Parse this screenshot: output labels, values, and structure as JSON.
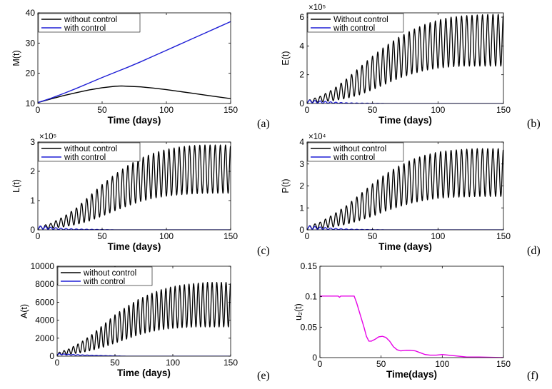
{
  "chart_data": [
    {
      "type": "line",
      "panel_label": "(a)",
      "xlabel": "Time (days)",
      "ylabel": "M(t)",
      "xlim": [
        0,
        150
      ],
      "ylim": [
        10,
        40
      ],
      "xticks": [
        "0",
        "50",
        "100",
        "150"
      ],
      "yticks": [
        "10",
        "20",
        "30",
        "40"
      ],
      "multiplier": "",
      "legend_position": "top-left",
      "series": [
        {
          "name": "without control",
          "color": "#000000",
          "x": [
            0,
            10,
            20,
            30,
            40,
            50,
            60,
            65,
            70,
            80,
            90,
            100,
            110,
            120,
            130,
            140,
            150
          ],
          "y": [
            10.3,
            11.5,
            12.6,
            13.6,
            14.5,
            15.2,
            15.7,
            15.8,
            15.7,
            15.5,
            15.1,
            14.6,
            14.0,
            13.4,
            12.8,
            12.2,
            11.6
          ]
        },
        {
          "name": "with control",
          "color": "#1f1fd6",
          "x": [
            0,
            10,
            20,
            30,
            40,
            50,
            60,
            70,
            80,
            90,
            100,
            110,
            120,
            130,
            140,
            150
          ],
          "y": [
            10.3,
            11.7,
            13.3,
            15.0,
            16.8,
            18.6,
            20.3,
            22.0,
            23.8,
            25.7,
            27.6,
            29.5,
            31.4,
            33.3,
            35.2,
            37.1
          ]
        }
      ]
    },
    {
      "type": "line",
      "panel_label": "(b)",
      "xlabel": "Time (days)",
      "ylabel": "E(t)",
      "xlim": [
        0,
        150
      ],
      "ylim": [
        0,
        6.3
      ],
      "xticks": [
        "0",
        "50",
        "100",
        "150"
      ],
      "yticks": [
        "0",
        "2",
        "4",
        "6"
      ],
      "multiplier": "×10⁵",
      "legend_position": "top",
      "oscillation_period_days": 4,
      "series": [
        {
          "name": "Without control",
          "color": "#000000",
          "x": [
            0,
            10,
            20,
            30,
            40,
            50,
            60,
            70,
            80,
            90,
            100,
            110,
            120,
            130,
            140,
            150
          ],
          "y_min": [
            0.05,
            0.1,
            0.2,
            0.35,
            0.6,
            0.95,
            1.35,
            1.75,
            2.05,
            2.3,
            2.45,
            2.55,
            2.6,
            2.6,
            2.6,
            2.6
          ],
          "y_max": [
            0.2,
            0.5,
            1.0,
            1.7,
            2.5,
            3.3,
            4.0,
            4.6,
            5.1,
            5.5,
            5.8,
            6.0,
            6.1,
            6.15,
            6.2,
            6.2
          ]
        },
        {
          "name": "with control",
          "color": "#1f1fd6",
          "x": [
            0,
            5,
            10,
            15,
            20,
            30,
            40,
            50,
            60,
            150
          ],
          "y_min": [
            0.05,
            0.03,
            0.02,
            0.01,
            0.01,
            0.0,
            0.0,
            0.0,
            0.0,
            0.0
          ],
          "y_max": [
            0.25,
            0.22,
            0.18,
            0.14,
            0.1,
            0.05,
            0.03,
            0.02,
            0.0,
            0.0
          ]
        }
      ]
    },
    {
      "type": "line",
      "panel_label": "(c)",
      "xlabel": "Time (days)",
      "ylabel": "L(t)",
      "xlim": [
        0,
        150
      ],
      "ylim": [
        0,
        3
      ],
      "xticks": [
        "0",
        "50",
        "100",
        "150"
      ],
      "yticks": [
        "0",
        "1",
        "2",
        "3"
      ],
      "multiplier": "×10⁵",
      "legend_position": "top",
      "oscillation_period_days": 4,
      "series": [
        {
          "name": "without control",
          "color": "#000000",
          "x": [
            0,
            10,
            20,
            30,
            40,
            50,
            60,
            70,
            80,
            90,
            100,
            110,
            120,
            130,
            140,
            150
          ],
          "y_min": [
            0.02,
            0.05,
            0.1,
            0.18,
            0.3,
            0.47,
            0.65,
            0.82,
            0.97,
            1.08,
            1.15,
            1.2,
            1.23,
            1.25,
            1.25,
            1.25
          ],
          "y_max": [
            0.1,
            0.22,
            0.45,
            0.75,
            1.15,
            1.55,
            1.9,
            2.2,
            2.45,
            2.62,
            2.75,
            2.83,
            2.88,
            2.9,
            2.9,
            2.9
          ]
        },
        {
          "name": "with control",
          "color": "#1f1fd6",
          "x": [
            0,
            5,
            10,
            15,
            20,
            30,
            40,
            50,
            60,
            150
          ],
          "y_min": [
            0.02,
            0.02,
            0.01,
            0.01,
            0.0,
            0.0,
            0.0,
            0.0,
            0.0,
            0.0
          ],
          "y_max": [
            0.14,
            0.12,
            0.09,
            0.07,
            0.05,
            0.03,
            0.02,
            0.01,
            0.0,
            0.0
          ]
        }
      ]
    },
    {
      "type": "line",
      "panel_label": "(d)",
      "xlabel": "Time (days)",
      "ylabel": "P(t)",
      "xlim": [
        0,
        150
      ],
      "ylim": [
        0,
        4
      ],
      "xticks": [
        "0",
        "50",
        "100",
        "150"
      ],
      "yticks": [
        "0",
        "1",
        "2",
        "3",
        "4"
      ],
      "multiplier": "×10⁴",
      "legend_position": "top",
      "oscillation_period_days": 4,
      "series": [
        {
          "name": "without control",
          "color": "#000000",
          "x": [
            0,
            10,
            20,
            30,
            40,
            50,
            60,
            70,
            80,
            90,
            100,
            110,
            120,
            130,
            140,
            150
          ],
          "y_min": [
            0.02,
            0.06,
            0.13,
            0.25,
            0.42,
            0.62,
            0.85,
            1.05,
            1.22,
            1.35,
            1.43,
            1.48,
            1.5,
            1.52,
            1.52,
            1.52
          ],
          "y_max": [
            0.15,
            0.35,
            0.7,
            1.1,
            1.6,
            2.1,
            2.55,
            2.9,
            3.2,
            3.4,
            3.55,
            3.62,
            3.67,
            3.7,
            3.7,
            3.7
          ]
        },
        {
          "name": "with control",
          "color": "#1f1fd6",
          "x": [
            0,
            5,
            10,
            15,
            20,
            30,
            40,
            50,
            60,
            150
          ],
          "y_min": [
            0.03,
            0.02,
            0.02,
            0.01,
            0.01,
            0.0,
            0.0,
            0.0,
            0.0,
            0.0
          ],
          "y_max": [
            0.18,
            0.16,
            0.13,
            0.1,
            0.07,
            0.04,
            0.02,
            0.01,
            0.0,
            0.0
          ]
        }
      ]
    },
    {
      "type": "line",
      "panel_label": "(e)",
      "xlabel": "Time (days)",
      "ylabel": "A(t)",
      "xlim": [
        0,
        150
      ],
      "ylim": [
        0,
        10000
      ],
      "xticks": [
        "0",
        "50",
        "100",
        "150"
      ],
      "yticks": [
        "0",
        "2000",
        "4000",
        "6000",
        "8000",
        "10000"
      ],
      "multiplier": "",
      "legend_position": "top",
      "oscillation_period_days": 4,
      "series": [
        {
          "name": "without control",
          "color": "#000000",
          "x": [
            0,
            10,
            20,
            30,
            40,
            50,
            60,
            70,
            80,
            90,
            100,
            110,
            120,
            130,
            140,
            150
          ],
          "y_min": [
            100,
            200,
            380,
            650,
            1000,
            1450,
            1900,
            2350,
            2700,
            2950,
            3100,
            3200,
            3250,
            3250,
            3250,
            3250
          ],
          "y_max": [
            350,
            800,
            1500,
            2400,
            3500,
            4600,
            5500,
            6300,
            6900,
            7400,
            7750,
            7950,
            8100,
            8200,
            8200,
            8200
          ]
        },
        {
          "name": "with control",
          "color": "#1f1fd6",
          "x": [
            0,
            5,
            10,
            20,
            30,
            40,
            50,
            60,
            150
          ],
          "y_min": [
            150,
            150,
            120,
            90,
            60,
            40,
            20,
            0,
            0
          ],
          "y_max": [
            300,
            260,
            220,
            160,
            110,
            70,
            40,
            0,
            0
          ]
        }
      ]
    },
    {
      "type": "line",
      "panel_label": "(f)",
      "xlabel": "Time(days)",
      "ylabel": "u₂(t)",
      "xlim": [
        0,
        150
      ],
      "ylim": [
        0,
        0.15
      ],
      "xticks": [
        "0",
        "50",
        "100",
        "150"
      ],
      "yticks": [
        "0",
        "0.05",
        "0.1",
        "0.15"
      ],
      "multiplier": "",
      "series": [
        {
          "name": "",
          "color": "#e600e6",
          "x": [
            0,
            10,
            15,
            16,
            17,
            18,
            20,
            25,
            28,
            30,
            33,
            36,
            38,
            40,
            42,
            45,
            48,
            51,
            54,
            57,
            60,
            63,
            66,
            70,
            74,
            78,
            82,
            86,
            90,
            95,
            100,
            105,
            110,
            115,
            120,
            130,
            140,
            150
          ],
          "y": [
            0.101,
            0.101,
            0.101,
            0.099,
            0.101,
            0.101,
            0.101,
            0.101,
            0.101,
            0.09,
            0.07,
            0.05,
            0.035,
            0.027,
            0.027,
            0.03,
            0.034,
            0.035,
            0.033,
            0.027,
            0.018,
            0.013,
            0.011,
            0.012,
            0.012,
            0.011,
            0.008,
            0.005,
            0.004,
            0.004,
            0.005,
            0.004,
            0.003,
            0.002,
            0.001,
            0.001,
            0.0005,
            0.0
          ]
        }
      ]
    }
  ]
}
